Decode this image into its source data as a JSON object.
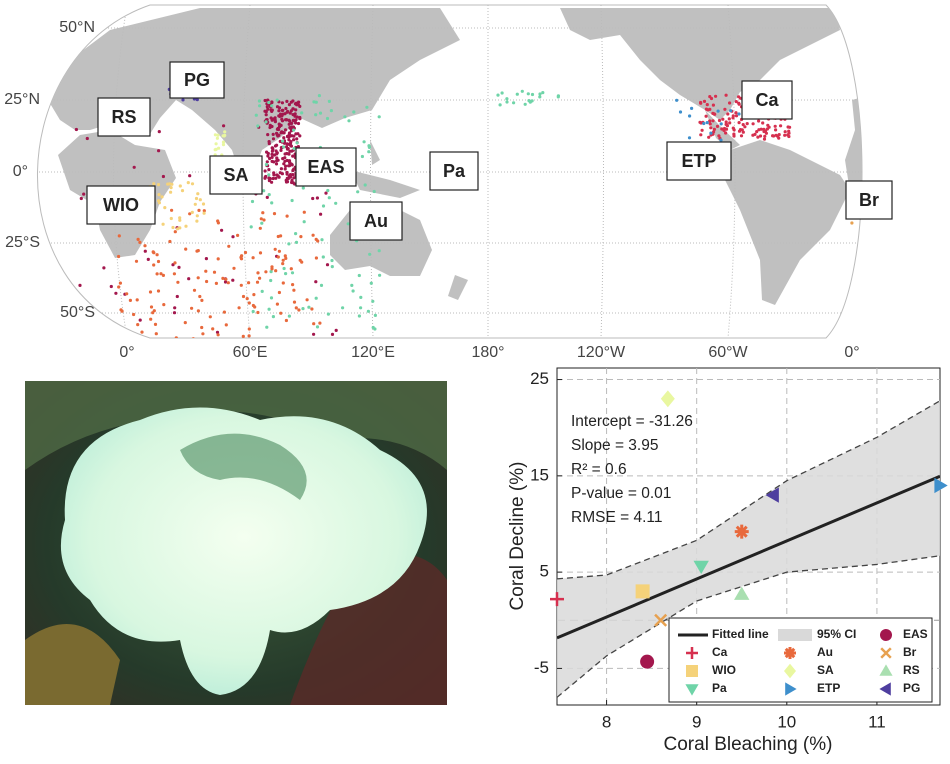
{
  "map": {
    "lat_labels": [
      "50°N",
      "25°N",
      "0°",
      "25°S",
      "50°S"
    ],
    "lon_labels": [
      "0°",
      "60°E",
      "120°E",
      "180°",
      "120°W",
      "60°W",
      "0°"
    ],
    "regions": [
      "PG",
      "RS",
      "SA",
      "EAS",
      "Pa",
      "Au",
      "WIO",
      "ETP",
      "Ca",
      "Br"
    ]
  },
  "chart_data": {
    "type": "scatter",
    "x_label": "Coral Bleaching (%)",
    "y_label": "Coral Decline (%)",
    "xlim": [
      7.45,
      11.7
    ],
    "ylim": [
      -8.8,
      26.2
    ],
    "xticks": [
      8,
      9,
      10,
      11
    ],
    "yticks": [
      -5,
      5,
      15,
      25
    ],
    "grid": true,
    "annotations": [
      "Intercept = -31.26",
      "Slope = 3.95",
      "R² = 0.6",
      "P-value = 0.01",
      "RMSE = 4.11"
    ],
    "fit": {
      "name": "Fitted line",
      "color": "#222222",
      "intercept": -31.26,
      "slope": 3.95
    },
    "ci": {
      "name": "95% CI",
      "color": "#d9d9d9",
      "x": [
        7.45,
        8,
        9,
        10,
        11,
        11.7
      ],
      "upper": [
        4.3,
        4.7,
        8.3,
        14.5,
        19,
        22.8
      ],
      "lower": [
        -8,
        -3.7,
        2,
        5,
        5.8,
        6.7
      ]
    },
    "series": [
      {
        "name": "EAS",
        "color": "#a3174d",
        "marker": "circle",
        "x": [
          8.45
        ],
        "values": [
          -4.3
        ]
      },
      {
        "name": "Ca",
        "color": "#d6304f",
        "marker": "plus",
        "x": [
          7.45
        ],
        "values": [
          2.2
        ]
      },
      {
        "name": "Au",
        "color": "#e8693c",
        "marker": "star",
        "x": [
          9.5
        ],
        "values": [
          9.2
        ]
      },
      {
        "name": "Br",
        "color": "#e7a150",
        "marker": "cross",
        "x": [
          8.6
        ],
        "values": [
          0
        ]
      },
      {
        "name": "WIO",
        "color": "#f5d27a",
        "marker": "square",
        "x": [
          8.4
        ],
        "values": [
          3
        ]
      },
      {
        "name": "SA",
        "color": "#e9f7a0",
        "marker": "diamond",
        "x": [
          8.68
        ],
        "values": [
          23
        ]
      },
      {
        "name": "RS",
        "color": "#a9dfb0",
        "marker": "tri-up",
        "x": [
          9.5
        ],
        "values": [
          2.7
        ]
      },
      {
        "name": "Pa",
        "color": "#6fd4a8",
        "marker": "tri-down",
        "x": [
          9.05
        ],
        "values": [
          5.6
        ]
      },
      {
        "name": "ETP",
        "color": "#3e8fcc",
        "marker": "tri-right",
        "x": [
          11.7
        ],
        "values": [
          14
        ]
      },
      {
        "name": "PG",
        "color": "#4e3e9f",
        "marker": "tri-left",
        "x": [
          9.85
        ],
        "values": [
          13
        ]
      }
    ]
  }
}
